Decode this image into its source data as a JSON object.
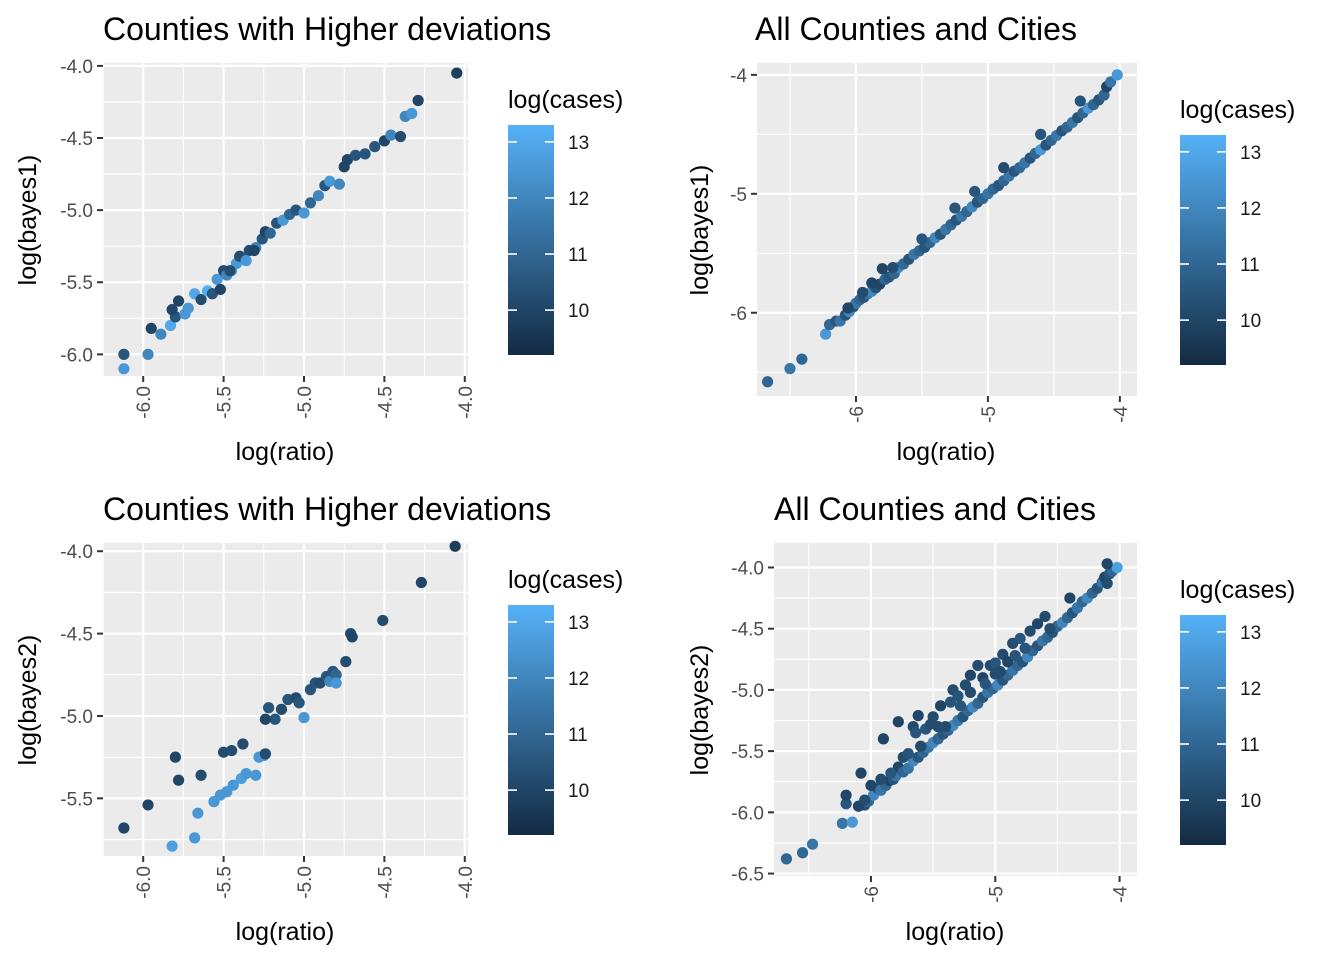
{
  "chart_data": [
    {
      "type": "scatter",
      "title": "Counties with Higher deviations",
      "xlabel": "log(ratio)",
      "ylabel": "log(bayes1)",
      "xlim": [
        -6.25,
        -3.98
      ],
      "ylim": [
        -6.15,
        -3.98
      ],
      "x_breaks": [
        -6.0,
        -5.5,
        -5.0,
        -4.5,
        -4.0
      ],
      "x_break_labels": [
        "-6.0",
        "-5.5",
        "-5.0",
        "-4.5",
        "-4.0"
      ],
      "y_breaks": [
        -4.0,
        -4.5,
        -5.0,
        -5.5,
        -6.0
      ],
      "y_break_labels": [
        "-4.0",
        "-4.5",
        "-5.0",
        "-5.5",
        "-6.0"
      ],
      "legend": {
        "title": "log(cases)",
        "min": 9.2,
        "max": 13.3,
        "breaks": [
          13,
          12,
          11,
          10
        ],
        "break_labels": [
          "13",
          "12",
          "11",
          "10"
        ]
      },
      "series": [
        {
          "name": "counties",
          "x": [
            -6.12,
            -6.12,
            -5.97,
            -5.95,
            -5.89,
            -5.83,
            -5.8,
            -5.78,
            -5.74,
            -5.72,
            -5.68,
            -5.64,
            -5.6,
            -5.57,
            -5.54,
            -5.5,
            -5.48,
            -5.45,
            -5.42,
            -5.38,
            -5.34,
            -5.3,
            -5.26,
            -5.24,
            -5.21,
            -5.17,
            -5.13,
            -5.09,
            -5.05,
            -5.0,
            -4.96,
            -4.91,
            -4.87,
            -4.84,
            -4.78,
            -4.75,
            -4.73,
            -4.68,
            -4.62,
            -4.56,
            -4.5,
            -4.46,
            -4.4,
            -4.37,
            -4.33,
            -4.29,
            -4.05,
            -5.52,
            -5.46,
            -5.4,
            -5.36,
            -5.82,
            -5.31
          ],
          "y": [
            -6.1,
            -6.0,
            -6.0,
            -5.82,
            -5.86,
            -5.8,
            -5.74,
            -5.63,
            -5.72,
            -5.68,
            -5.58,
            -5.62,
            -5.56,
            -5.58,
            -5.48,
            -5.42,
            -5.45,
            -5.42,
            -5.37,
            -5.33,
            -5.28,
            -5.26,
            -5.2,
            -5.15,
            -5.16,
            -5.09,
            -5.07,
            -5.03,
            -5.0,
            -5.02,
            -4.95,
            -4.9,
            -4.83,
            -4.8,
            -4.82,
            -4.7,
            -4.65,
            -4.62,
            -4.61,
            -4.56,
            -4.52,
            -4.48,
            -4.49,
            -4.35,
            -4.33,
            -4.24,
            -4.05,
            -5.55,
            -5.42,
            -5.32,
            -5.35,
            -5.69,
            -5.28
          ],
          "c": [
            12.5,
            10.5,
            12.0,
            10.0,
            12.0,
            13.0,
            10.5,
            10.0,
            12.5,
            12.5,
            13.0,
            10.2,
            13.2,
            10.5,
            12.5,
            10.2,
            12.0,
            12.8,
            12.5,
            12.0,
            10.2,
            12.0,
            10.5,
            10.0,
            11.0,
            10.5,
            12.5,
            11.0,
            10.5,
            12.5,
            11.0,
            12.0,
            10.5,
            12.5,
            12.0,
            10.0,
            10.0,
            10.5,
            10.5,
            10.5,
            10.0,
            12.0,
            10.2,
            12.0,
            12.5,
            10.0,
            9.8,
            10.0,
            10.2,
            10.2,
            12.5,
            10.0,
            10.0
          ]
        }
      ]
    },
    {
      "type": "scatter",
      "title": "All Counties and Cities",
      "xlabel": "log(ratio)",
      "ylabel": "log(bayes1)",
      "xlim": [
        -6.75,
        -3.87
      ],
      "ylim": [
        -6.7,
        -3.9
      ],
      "x_breaks": [
        -6,
        -5,
        -4
      ],
      "x_break_labels": [
        "-6",
        "-5",
        "-4"
      ],
      "y_breaks": [
        -4,
        -5,
        -6
      ],
      "y_break_labels": [
        "-4",
        "-5",
        "-6"
      ],
      "legend": {
        "title": "log(cases)",
        "min": 9.2,
        "max": 13.3,
        "breaks": [
          13,
          12,
          11,
          10
        ],
        "break_labels": [
          "13",
          "12",
          "11",
          "10"
        ]
      },
      "series": [
        {
          "name": "counties and cities",
          "x": [
            -6.67,
            -6.5,
            -6.41,
            -6.23,
            -6.2,
            -6.15,
            -6.12,
            -6.08,
            -6.05,
            -6.02,
            -6.0,
            -5.97,
            -5.94,
            -5.91,
            -5.88,
            -5.85,
            -5.82,
            -5.78,
            -5.75,
            -5.71,
            -5.68,
            -5.64,
            -5.6,
            -5.56,
            -5.52,
            -5.48,
            -5.44,
            -5.4,
            -5.36,
            -5.32,
            -5.28,
            -5.24,
            -5.2,
            -5.16,
            -5.12,
            -5.08,
            -5.04,
            -5.0,
            -4.96,
            -4.92,
            -4.88,
            -4.84,
            -4.8,
            -4.76,
            -4.72,
            -4.68,
            -4.64,
            -4.6,
            -4.56,
            -4.52,
            -4.48,
            -4.44,
            -4.4,
            -4.36,
            -4.32,
            -4.28,
            -4.24,
            -4.2,
            -4.16,
            -4.12,
            -4.1,
            -4.07,
            -4.02,
            -6.06,
            -5.88,
            -5.8,
            -5.72,
            -5.95,
            -5.5,
            -5.1,
            -4.6,
            -4.3,
            -4.88,
            -5.25
          ],
          "y": [
            -6.58,
            -6.47,
            -6.39,
            -6.18,
            -6.1,
            -6.07,
            -6.07,
            -6.02,
            -5.99,
            -5.95,
            -5.92,
            -5.89,
            -5.87,
            -5.84,
            -5.82,
            -5.79,
            -5.76,
            -5.72,
            -5.7,
            -5.67,
            -5.62,
            -5.59,
            -5.55,
            -5.51,
            -5.48,
            -5.45,
            -5.41,
            -5.37,
            -5.34,
            -5.3,
            -5.26,
            -5.22,
            -5.19,
            -5.15,
            -5.11,
            -5.07,
            -5.04,
            -5.0,
            -4.96,
            -4.93,
            -4.89,
            -4.85,
            -4.81,
            -4.78,
            -4.74,
            -4.7,
            -4.66,
            -4.63,
            -4.59,
            -4.55,
            -4.51,
            -4.47,
            -4.44,
            -4.4,
            -4.36,
            -4.32,
            -4.28,
            -4.25,
            -4.21,
            -4.17,
            -4.1,
            -4.06,
            -4.0,
            -5.96,
            -5.75,
            -5.63,
            -5.62,
            -5.83,
            -5.38,
            -4.98,
            -4.5,
            -4.22,
            -4.78,
            -5.12
          ],
          "c": [
            11.0,
            11.5,
            11.0,
            12.5,
            11.0,
            10.5,
            11.5,
            10.5,
            12.0,
            10.5,
            11.5,
            11.0,
            10.5,
            11.5,
            12.0,
            10.5,
            10.0,
            11.0,
            10.5,
            11.0,
            12.0,
            11.0,
            10.5,
            11.5,
            11.0,
            10.5,
            11.0,
            12.0,
            10.5,
            11.5,
            11.0,
            10.5,
            11.5,
            11.0,
            12.0,
            10.5,
            11.0,
            11.5,
            11.0,
            10.5,
            11.0,
            11.5,
            10.5,
            11.0,
            11.5,
            10.5,
            11.0,
            12.5,
            10.5,
            11.0,
            11.5,
            10.5,
            11.0,
            11.5,
            10.5,
            11.0,
            12.5,
            11.0,
            10.5,
            11.0,
            10.0,
            11.5,
            12.5,
            10.0,
            10.0,
            10.0,
            10.2,
            10.2,
            10.5,
            10.5,
            10.5,
            10.5,
            10.2,
            10.5
          ]
        }
      ]
    },
    {
      "type": "scatter",
      "title": "Counties with Higher deviations",
      "xlabel": "log(ratio)",
      "ylabel": "log(bayes2)",
      "xlim": [
        -6.25,
        -3.98
      ],
      "ylim": [
        -5.85,
        -3.95
      ],
      "x_breaks": [
        -6.0,
        -5.5,
        -5.0,
        -4.5,
        -4.0
      ],
      "x_break_labels": [
        "-6.0",
        "-5.5",
        "-5.0",
        "-4.5",
        "-4.0"
      ],
      "y_breaks": [
        -4.0,
        -4.5,
        -5.0,
        -5.5
      ],
      "y_break_labels": [
        "-4.0",
        "-4.5",
        "-5.0",
        "-5.5"
      ],
      "legend": {
        "title": "log(cases)",
        "min": 9.2,
        "max": 13.3,
        "breaks": [
          13,
          12,
          11,
          10
        ],
        "break_labels": [
          "13",
          "12",
          "11",
          "10"
        ]
      },
      "series": [
        {
          "name": "counties",
          "x": [
            -6.12,
            -5.97,
            -5.82,
            -5.8,
            -5.78,
            -5.68,
            -5.66,
            -5.64,
            -5.56,
            -5.52,
            -5.5,
            -5.48,
            -5.45,
            -5.44,
            -5.39,
            -5.38,
            -5.36,
            -5.3,
            -5.28,
            -5.25,
            -5.24,
            -5.22,
            -5.18,
            -5.14,
            -5.1,
            -5.05,
            -5.03,
            -5.0,
            -4.96,
            -4.93,
            -4.9,
            -4.86,
            -4.84,
            -4.82,
            -4.8,
            -4.8,
            -4.74,
            -4.71,
            -4.7,
            -4.51,
            -4.27,
            -4.06,
            -5.24
          ],
          "y": [
            -5.68,
            -5.54,
            -5.79,
            -5.25,
            -5.39,
            -5.74,
            -5.59,
            -5.36,
            -5.52,
            -5.48,
            -5.22,
            -5.46,
            -5.21,
            -5.42,
            -5.38,
            -5.17,
            -5.35,
            -5.36,
            -5.25,
            -5.24,
            -5.23,
            -4.95,
            -5.02,
            -4.96,
            -4.9,
            -4.89,
            -4.92,
            -5.01,
            -4.84,
            -4.8,
            -4.8,
            -4.76,
            -4.79,
            -4.73,
            -4.75,
            -4.8,
            -4.67,
            -4.5,
            -4.52,
            -4.42,
            -4.19,
            -3.97,
            -5.02
          ],
          "c": [
            10.0,
            10.0,
            12.8,
            10.0,
            10.0,
            12.5,
            12.5,
            10.2,
            12.5,
            12.5,
            10.2,
            12.5,
            10.2,
            12.5,
            12.8,
            10.2,
            12.5,
            12.5,
            12.5,
            12.5,
            10.2,
            10.5,
            10.5,
            10.2,
            10.5,
            10.2,
            10.5,
            12.5,
            10.5,
            10.5,
            10.2,
            10.5,
            12.0,
            10.5,
            11.0,
            12.5,
            10.2,
            10.2,
            10.0,
            10.2,
            10.0,
            9.8,
            10.0
          ]
        }
      ]
    },
    {
      "type": "scatter",
      "title": "All Counties and Cities",
      "xlabel": "log(ratio)",
      "ylabel": "log(bayes2)",
      "xlim": [
        -6.78,
        -3.86
      ],
      "ylim": [
        -6.52,
        -3.8
      ],
      "x_breaks": [
        -6,
        -5,
        -4
      ],
      "x_break_labels": [
        "-6",
        "-5",
        "-4"
      ],
      "y_breaks": [
        -4.0,
        -4.5,
        -5.0,
        -5.5,
        -6.0,
        -6.5
      ],
      "y_break_labels": [
        "-4.0",
        "-4.5",
        "-5.0",
        "-5.5",
        "-6.0",
        "-6.5"
      ],
      "legend": {
        "title": "log(cases)",
        "min": 9.2,
        "max": 13.3,
        "breaks": [
          13,
          12,
          11,
          10
        ],
        "break_labels": [
          "13",
          "12",
          "11",
          "10"
        ]
      },
      "series": [
        {
          "name": "counties and cities",
          "x": [
            -6.68,
            -6.55,
            -6.47,
            -6.23,
            -6.2,
            -6.2,
            -6.15,
            -6.1,
            -6.08,
            -6.05,
            -6.02,
            -5.98,
            -5.95,
            -5.92,
            -5.88,
            -5.85,
            -5.82,
            -5.8,
            -5.78,
            -5.74,
            -5.7,
            -5.66,
            -5.62,
            -5.58,
            -5.54,
            -5.5,
            -5.46,
            -5.42,
            -5.38,
            -5.34,
            -5.3,
            -5.26,
            -5.22,
            -5.18,
            -5.14,
            -5.1,
            -5.06,
            -5.02,
            -4.98,
            -4.94,
            -4.9,
            -4.86,
            -4.82,
            -4.78,
            -4.74,
            -4.7,
            -4.66,
            -4.62,
            -4.58,
            -4.54,
            -4.5,
            -4.46,
            -4.42,
            -4.38,
            -4.34,
            -4.3,
            -4.26,
            -4.22,
            -4.18,
            -4.14,
            -4.12,
            -4.08,
            -4.06,
            -4.02,
            -4.1,
            -4.1,
            -6.1,
            -6.05,
            -5.92,
            -5.84,
            -5.78,
            -5.74,
            -5.66,
            -5.62,
            -5.56,
            -5.5,
            -5.44,
            -5.4,
            -5.34,
            -5.3,
            -5.24,
            -5.2,
            -5.14,
            -5.1,
            -5.04,
            -5.0,
            -4.94,
            -4.86,
            -4.8,
            -4.72,
            -4.66,
            -4.6,
            -4.4,
            -5.6,
            -5.7,
            -5.52,
            -5.36,
            -5.2,
            -5.0,
            -4.9,
            -6.0,
            -5.9,
            -5.64,
            -5.46,
            -5.28,
            -5.08,
            -4.96,
            -4.84,
            -4.76,
            -4.56
          ],
          "y": [
            -6.38,
            -6.33,
            -6.26,
            -6.09,
            -5.93,
            -5.86,
            -6.08,
            -5.95,
            -5.68,
            -5.94,
            -5.91,
            -5.86,
            -5.8,
            -5.82,
            -5.78,
            -5.74,
            -5.73,
            -5.7,
            -5.63,
            -5.67,
            -5.64,
            -5.58,
            -5.55,
            -5.51,
            -5.47,
            -5.43,
            -5.4,
            -5.36,
            -5.33,
            -5.29,
            -5.25,
            -5.22,
            -5.17,
            -5.14,
            -5.11,
            -5.06,
            -5.02,
            -4.99,
            -4.96,
            -4.92,
            -4.88,
            -4.84,
            -4.8,
            -4.77,
            -4.73,
            -4.68,
            -4.64,
            -4.6,
            -4.57,
            -4.53,
            -4.48,
            -4.45,
            -4.41,
            -4.37,
            -4.33,
            -4.28,
            -4.25,
            -4.21,
            -4.17,
            -4.12,
            -4.08,
            -4.05,
            -4.03,
            -4.0,
            -4.13,
            -3.97,
            -5.95,
            -5.9,
            -5.73,
            -5.68,
            -5.26,
            -5.55,
            -5.3,
            -5.21,
            -5.32,
            -5.22,
            -5.13,
            -5.3,
            -5.0,
            -5.05,
            -4.96,
            -4.88,
            -4.8,
            -4.9,
            -4.8,
            -4.78,
            -4.71,
            -4.62,
            -4.58,
            -4.52,
            -4.46,
            -4.4,
            -4.25,
            -5.46,
            -5.52,
            -5.28,
            -5.1,
            -5.02,
            -4.87,
            -4.77,
            -5.78,
            -5.4,
            -5.35,
            -5.3,
            -5.13,
            -4.95,
            -4.85,
            -4.72,
            -4.66,
            -4.5
          ],
          "c": [
            11.0,
            11.0,
            11.5,
            11.5,
            10.5,
            10.0,
            12.5,
            12.0,
            10.0,
            10.5,
            11.0,
            12.0,
            10.5,
            11.5,
            11.0,
            10.0,
            10.5,
            11.5,
            10.0,
            11.0,
            11.5,
            12.0,
            10.5,
            11.0,
            11.5,
            12.0,
            11.0,
            10.5,
            11.0,
            12.0,
            11.5,
            10.5,
            11.0,
            12.0,
            11.0,
            10.5,
            11.5,
            11.0,
            12.0,
            10.5,
            11.0,
            11.5,
            11.0,
            10.5,
            12.0,
            11.0,
            10.5,
            11.5,
            11.0,
            10.5,
            11.0,
            12.0,
            11.0,
            10.5,
            11.5,
            11.0,
            12.0,
            11.0,
            10.5,
            11.5,
            10.0,
            10.5,
            11.0,
            12.8,
            10.2,
            10.0,
            10.0,
            10.2,
            10.2,
            10.5,
            10.0,
            10.2,
            10.2,
            10.0,
            10.5,
            10.2,
            10.0,
            10.2,
            10.2,
            10.5,
            10.2,
            10.0,
            10.2,
            10.0,
            10.2,
            10.5,
            10.2,
            10.2,
            10.5,
            10.2,
            10.0,
            10.2,
            10.0,
            10.2,
            10.5,
            10.2,
            10.5,
            10.2,
            10.2,
            10.0,
            10.0,
            10.0,
            10.5,
            10.2,
            10.5,
            10.5,
            10.2,
            10.5,
            10.5,
            10.2
          ]
        }
      ]
    }
  ]
}
